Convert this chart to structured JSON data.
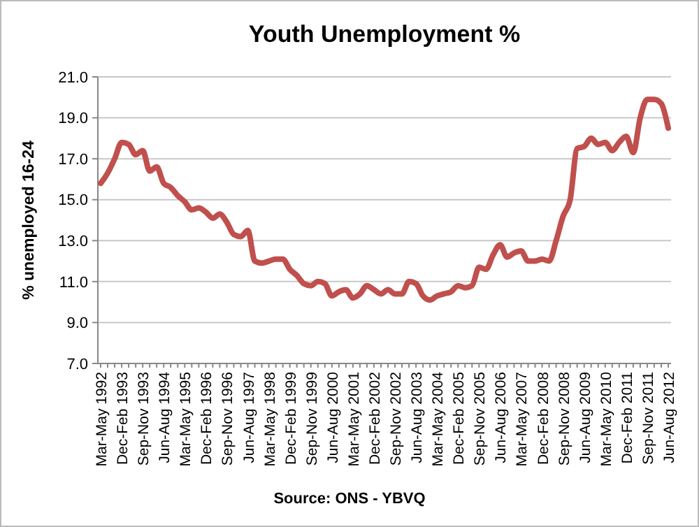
{
  "chart_data": {
    "type": "line",
    "title": "Youth Unemployment %",
    "ylabel": "% unemployed 16-24",
    "annotations": [
      "Source:  ONS - YBVQ"
    ],
    "categories": [
      "Mar-May 1992",
      null,
      null,
      "Dec-Feb 1993",
      null,
      null,
      "Sep-Nov 1993",
      null,
      null,
      "Jun-Aug 1994",
      null,
      null,
      "Mar-May 1995",
      null,
      null,
      "Dec-Feb 1996",
      null,
      null,
      "Sep-Nov 1996",
      null,
      null,
      "Jun-Aug 1997",
      null,
      null,
      "Mar-May 1998",
      null,
      null,
      "Dec-Feb 1999",
      null,
      null,
      "Sep-Nov 1999",
      null,
      null,
      "Jun-Aug 2000",
      null,
      null,
      "Mar-May 2001",
      null,
      null,
      "Dec-Feb 2002",
      null,
      null,
      "Sep-Nov 2002",
      null,
      null,
      "Jun-Aug 2003",
      null,
      null,
      "Mar-May 2004",
      null,
      null,
      "Dec-Feb 2005",
      null,
      null,
      "Sep-Nov 2005",
      null,
      null,
      "Jun-Aug 2006",
      null,
      null,
      "Mar-May 2007",
      null,
      null,
      "Dec-Feb 2008",
      null,
      null,
      "Sep-Nov 2008",
      null,
      null,
      "Jun-Aug 2009",
      null,
      null,
      "Mar-May 2010",
      null,
      null,
      "Dec-Feb 2011",
      null,
      null,
      "Sep-Nov 2011",
      null,
      null,
      "Jun-Aug 2012"
    ],
    "series": [
      {
        "color": "#c0504d",
        "values": [
          15.8,
          16.3,
          17.0,
          17.8,
          17.7,
          17.2,
          17.4,
          16.4,
          16.6,
          15.8,
          15.6,
          15.2,
          14.9,
          14.5,
          14.6,
          14.4,
          14.1,
          14.3,
          13.9,
          13.3,
          13.2,
          13.5,
          12.0,
          11.9,
          12.0,
          12.1,
          12.1,
          11.6,
          11.3,
          10.9,
          10.8,
          11.0,
          10.9,
          10.3,
          10.5,
          10.6,
          10.2,
          10.4,
          10.8,
          10.6,
          10.4,
          10.6,
          10.4,
          10.4,
          11.0,
          10.9,
          10.3,
          10.1,
          10.3,
          10.4,
          10.5,
          10.8,
          10.7,
          10.8,
          11.7,
          11.6,
          12.3,
          12.8,
          12.2,
          12.4,
          12.5,
          12.0,
          12.0,
          12.1,
          12.0,
          13.0,
          14.2,
          15.0,
          17.5,
          17.6,
          18.0,
          17.7,
          17.8,
          17.4,
          17.8,
          18.1,
          17.3,
          19.0,
          19.9,
          19.9,
          19.7,
          18.5
        ]
      }
    ],
    "ylim": [
      7,
      21
    ],
    "yticks": [
      {
        "value": 7,
        "label": "7.0"
      },
      {
        "value": 9,
        "label": "9.0"
      },
      {
        "value": 11,
        "label": "11.0"
      },
      {
        "value": 13,
        "label": "13.0"
      },
      {
        "value": 15,
        "label": "15.0"
      },
      {
        "value": 17,
        "label": "17.0"
      },
      {
        "value": 19,
        "label": "19.0"
      },
      {
        "value": 21,
        "label": "21.0"
      }
    ],
    "grid": "y",
    "marker": "none",
    "line_style": "solid"
  }
}
